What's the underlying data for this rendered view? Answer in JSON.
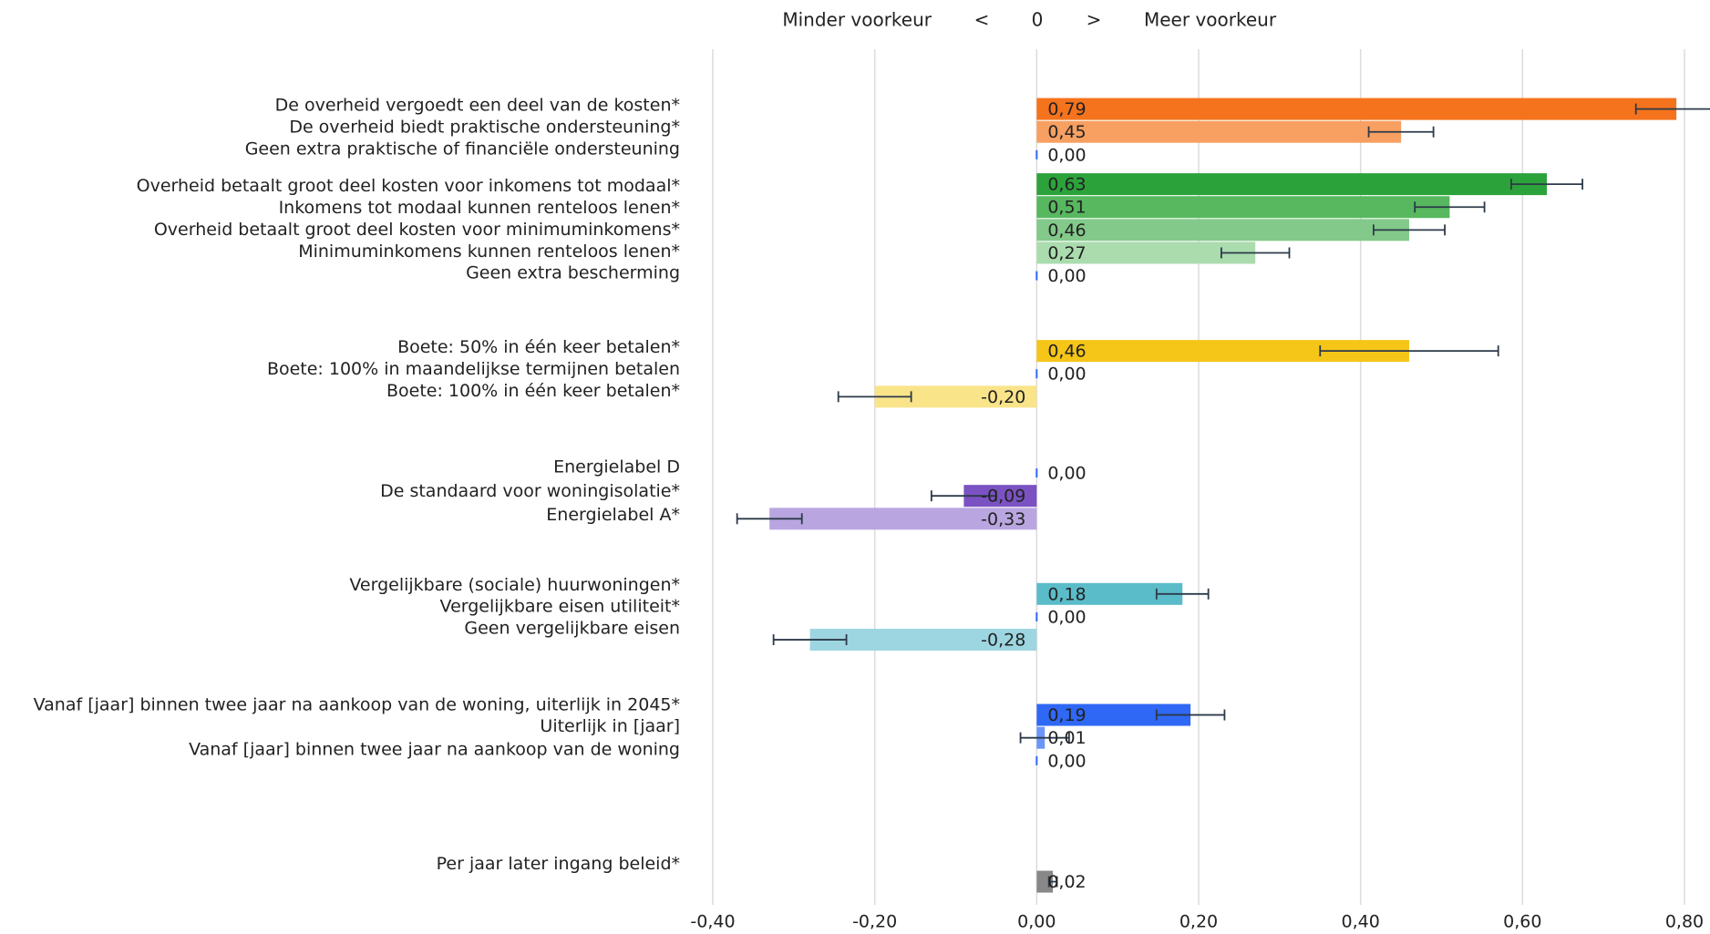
{
  "chart_data": {
    "type": "bar",
    "header": {
      "left": "Minder voorkeur",
      "left_sign": "<",
      "center": "0",
      "right_sign": ">",
      "right": "Meer voorkeur"
    },
    "categories": [
      "De overheid vergoedt een deel van de kosten*",
      "De overheid biedt praktische ondersteuning*",
      "Geen extra praktische of financiële ondersteuning",
      "Overheid betaalt groot deel kosten voor inkomens tot modaal*",
      "Inkomens tot modaal kunnen renteloos lenen*",
      "Overheid betaalt groot deel kosten voor minimuminkomens*",
      "Minimuminkomens kunnen renteloos lenen*",
      "Geen extra bescherming",
      "Boete: 50% in één keer betalen*",
      "Boete: 100% in maandelijkse termijnen betalen",
      "Boete: 100% in één keer betalen*",
      "Energielabel D",
      "De standaard voor woningisolatie*",
      "Energielabel A*",
      "Vergelijkbare (sociale) huurwoningen*",
      "Vergelijkbare eisen utiliteit*",
      "Geen vergelijkbare eisen",
      "Vanaf [jaar] binnen twee jaar na aankoop van de woning, uiterlijk in 2045*",
      "Uiterlijk in [jaar]",
      "Vanaf [jaar] binnen twee jaar na aankoop van de woning",
      "Per jaar later ingang beleid*"
    ],
    "values": [
      0.79,
      0.45,
      0,
      0.63,
      0.51,
      0.46,
      0.27,
      0,
      0.46,
      0,
      -0.2,
      0,
      -0.09,
      -0.33,
      0.18,
      0,
      -0.28,
      0.19,
      0.01,
      0,
      0.02
    ],
    "value_labels": [
      "0,79",
      "0,45",
      "0,00",
      "0,63",
      "0,51",
      "0,46",
      "0,27",
      "0,00",
      "0,46",
      "0,00",
      "-0,20",
      "0,00",
      "-0,09",
      "-0,33",
      "0,18",
      "0,00",
      "-0,28",
      "0,19",
      "0,01",
      "0,00",
      "0,02"
    ],
    "errors": [
      0.05,
      0.04,
      null,
      0.044,
      0.043,
      0.044,
      0.042,
      null,
      0.11,
      null,
      0.045,
      null,
      0.04,
      0.04,
      0.032,
      null,
      0.045,
      0.042,
      0.03,
      null,
      0.005
    ],
    "colors": [
      "#f4731c",
      "#f7a062",
      "#f7a062",
      "#2ca23a",
      "#57b85f",
      "#83c98a",
      "#aadcae",
      "#aadcae",
      "#f5c518",
      "#f5c518",
      "#fae48a",
      "#7b52c2",
      "#7b52c2",
      "#b9a6e0",
      "#5bbcc9",
      "#5bbcc9",
      "#9dd6e0",
      "#2f68f5",
      "#6b95f7",
      "#6b95f7",
      "#888888"
    ],
    "xlim": [
      -0.4,
      0.8
    ],
    "xticks": [
      {
        "value": -0.4,
        "label": "-0,40"
      },
      {
        "value": -0.2,
        "label": "-0,20"
      },
      {
        "value": 0,
        "label": "0,00"
      },
      {
        "value": 0.2,
        "label": "0,20"
      },
      {
        "value": 0.4,
        "label": "0,40"
      },
      {
        "value": 0.6,
        "label": "0,60"
      },
      {
        "value": 0.8,
        "label": "0,80"
      }
    ],
    "grid": true
  }
}
